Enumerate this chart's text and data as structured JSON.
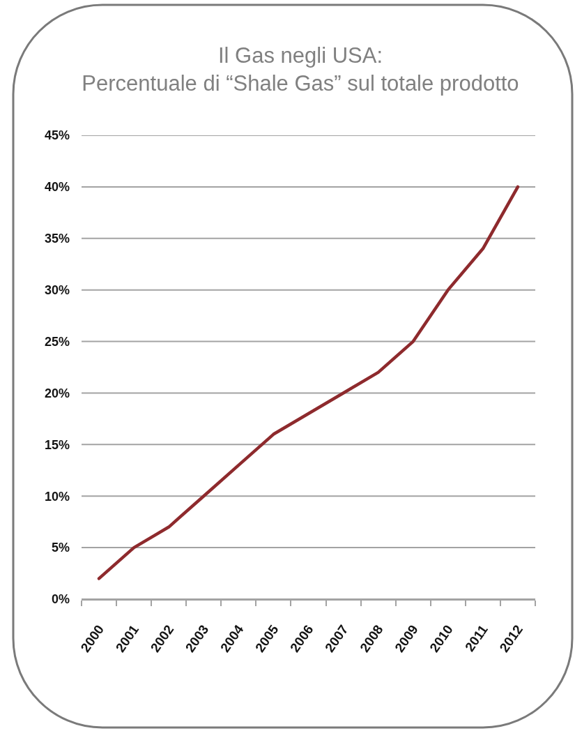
{
  "chart_data": {
    "type": "line",
    "title": "Il Gas negli USA:\nPercentuale di “Shale Gas” sul totale prodotto",
    "categories": [
      "2000",
      "2001",
      "2002",
      "2003",
      "2004",
      "2005",
      "2006",
      "2007",
      "2008",
      "2009",
      "2010",
      "2011",
      "2012"
    ],
    "values": [
      2,
      5,
      7,
      10,
      13,
      16,
      18,
      20,
      22,
      25,
      30,
      34,
      40
    ],
    "color": "#8e2a2d",
    "ylim": [
      0,
      45
    ],
    "yticks": [
      {
        "value": 0,
        "label": "0%"
      },
      {
        "value": 5,
        "label": "5%"
      },
      {
        "value": 10,
        "label": "10%"
      },
      {
        "value": 15,
        "label": "15%"
      },
      {
        "value": 20,
        "label": "20%"
      },
      {
        "value": 25,
        "label": "25%"
      },
      {
        "value": 30,
        "label": "30%"
      },
      {
        "value": 35,
        "label": "35%"
      },
      {
        "value": 40,
        "label": "40%"
      },
      {
        "value": 45,
        "label": "45%"
      }
    ],
    "grid": "y",
    "line_style": "solid"
  }
}
